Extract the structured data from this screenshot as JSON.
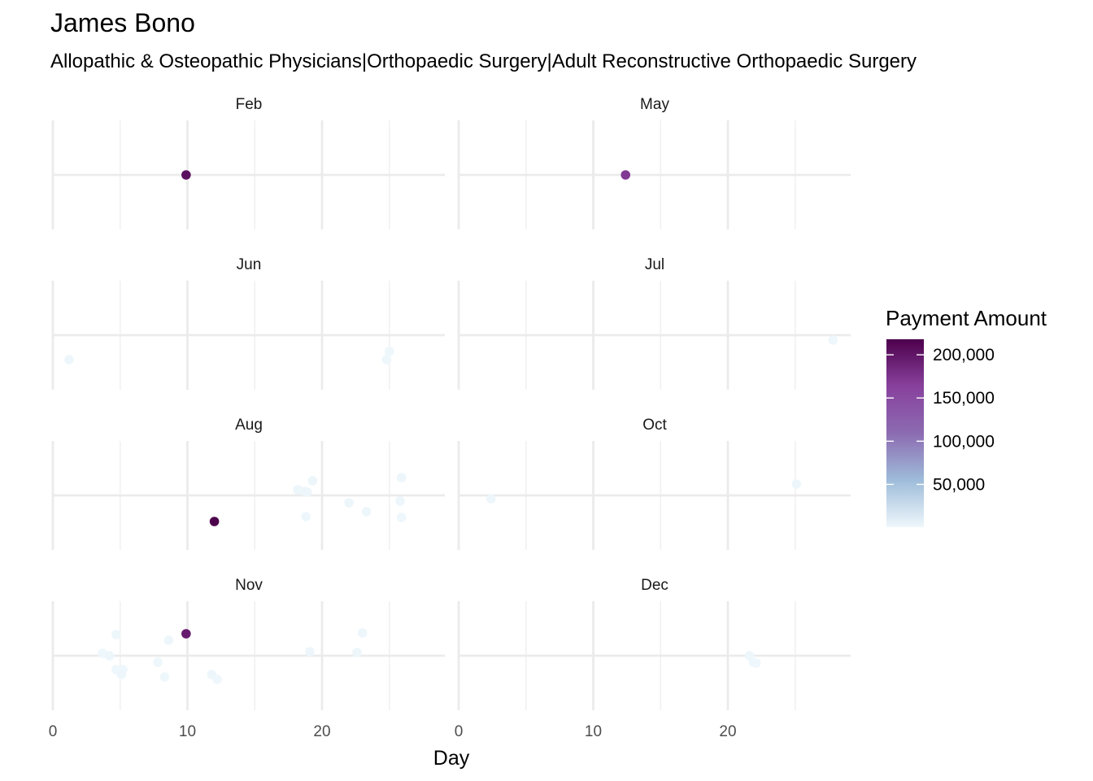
{
  "chart_data": {
    "type": "scatter",
    "title": "James Bono",
    "subtitle": "Allopathic & Osteopathic Physicians|Orthopaedic Surgery|Adult Reconstructive Orthopaedic Surgery",
    "xlabel": "Day",
    "ylabel": "",
    "xlim": [
      0,
      29
    ],
    "x_ticks": [
      "0",
      "10",
      "20"
    ],
    "y_axis": "jittered (no values)",
    "grid": true,
    "legend": {
      "title": "Payment Amount",
      "placement": "right",
      "scale": "continuous",
      "range": [
        500,
        218000
      ],
      "ticks": [
        "50,000",
        "100,000",
        "150,000",
        "200,000"
      ],
      "tick_values": [
        50000,
        100000,
        150000,
        200000
      ],
      "colors": [
        "#eef7fb",
        "#9ebcda",
        "#8c6bb1",
        "#88419d",
        "#4d004b"
      ]
    },
    "facets": [
      {
        "month": "Feb",
        "points": [
          {
            "day": 9.9,
            "jitter": 0.0,
            "amount": 205000
          }
        ]
      },
      {
        "month": "May",
        "points": [
          {
            "day": 12.4,
            "jitter": 0.0,
            "amount": 170000
          }
        ]
      },
      {
        "month": "Jun",
        "points": [
          {
            "day": 1.2,
            "jitter": -0.3,
            "amount": 900
          },
          {
            "day": 25.0,
            "jitter": -0.2,
            "amount": 800
          },
          {
            "day": 24.8,
            "jitter": -0.3,
            "amount": 700
          }
        ]
      },
      {
        "month": "Jul",
        "points": [
          {
            "day": 27.8,
            "jitter": -0.06,
            "amount": 700
          }
        ]
      },
      {
        "month": "Aug",
        "points": [
          {
            "day": 12.0,
            "jitter": -0.32,
            "amount": 218000
          },
          {
            "day": 18.2,
            "jitter": 0.07,
            "amount": 1500
          },
          {
            "day": 18.7,
            "jitter": 0.05,
            "amount": 1200
          },
          {
            "day": 18.9,
            "jitter": 0.04,
            "amount": 1000
          },
          {
            "day": 19.3,
            "jitter": 0.18,
            "amount": 1800
          },
          {
            "day": 18.8,
            "jitter": -0.26,
            "amount": 900
          },
          {
            "day": 22.0,
            "jitter": -0.09,
            "amount": 1100
          },
          {
            "day": 23.3,
            "jitter": -0.2,
            "amount": 900
          },
          {
            "day": 25.9,
            "jitter": 0.22,
            "amount": 1500
          },
          {
            "day": 25.8,
            "jitter": -0.07,
            "amount": 1000
          },
          {
            "day": 25.9,
            "jitter": -0.27,
            "amount": 800
          }
        ]
      },
      {
        "month": "Oct",
        "points": [
          {
            "day": 2.4,
            "jitter": -0.04,
            "amount": 1200
          },
          {
            "day": 25.1,
            "jitter": 0.14,
            "amount": 900
          }
        ]
      },
      {
        "month": "Nov",
        "points": [
          {
            "day": 9.9,
            "jitter": 0.27,
            "amount": 195000
          },
          {
            "day": 4.7,
            "jitter": 0.26,
            "amount": 1000
          },
          {
            "day": 8.6,
            "jitter": 0.19,
            "amount": 900
          },
          {
            "day": 3.7,
            "jitter": 0.03,
            "amount": 800
          },
          {
            "day": 4.2,
            "jitter": 0.0,
            "amount": 900
          },
          {
            "day": 4.7,
            "jitter": -0.17,
            "amount": 700
          },
          {
            "day": 5.2,
            "jitter": -0.17,
            "amount": 800
          },
          {
            "day": 5.1,
            "jitter": -0.23,
            "amount": 900
          },
          {
            "day": 7.8,
            "jitter": -0.08,
            "amount": 700
          },
          {
            "day": 8.3,
            "jitter": -0.26,
            "amount": 800
          },
          {
            "day": 11.8,
            "jitter": -0.23,
            "amount": 900
          },
          {
            "day": 12.2,
            "jitter": -0.29,
            "amount": 800
          },
          {
            "day": 19.1,
            "jitter": 0.05,
            "amount": 1000
          },
          {
            "day": 22.6,
            "jitter": 0.04,
            "amount": 900
          },
          {
            "day": 23.0,
            "jitter": 0.28,
            "amount": 1000
          }
        ]
      },
      {
        "month": "Dec",
        "points": [
          {
            "day": 21.6,
            "jitter": 0.0,
            "amount": 900
          },
          {
            "day": 21.9,
            "jitter": -0.08,
            "amount": 800
          },
          {
            "day": 22.1,
            "jitter": -0.09,
            "amount": 700
          }
        ]
      }
    ]
  }
}
